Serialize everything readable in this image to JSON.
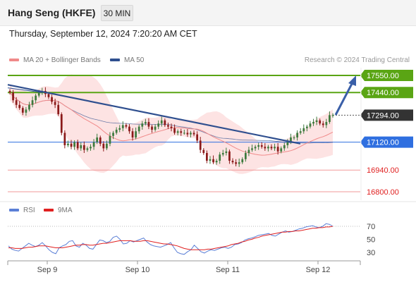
{
  "header": {
    "title": "Hang Seng (HKFE)",
    "timeframe": "30 MIN",
    "datetime": "Thursday, September 12, 2024 7:20:20 AM CET"
  },
  "legend": {
    "ma20": {
      "label": "MA 20 + Bollinger Bands",
      "color": "#f08a8a"
    },
    "ma50": {
      "label": "MA 50",
      "color": "#2f4f8f"
    },
    "copyright": "Research © 2024 Trading Central"
  },
  "rsi_legend": {
    "rsi": {
      "label": "RSI",
      "color": "#5b7fd6"
    },
    "ma9": {
      "label": "9MA",
      "color": "#e02020"
    }
  },
  "colors": {
    "up": "#3d7a3d",
    "down": "#8b1a1a",
    "resistance": "#5aa514",
    "pivot": "#2f6fe0",
    "support": "#f29a9a",
    "current": "#333333",
    "arrow": "#3a5fa8"
  },
  "chart_data": [
    {
      "type": "candlestick",
      "ylim": [
        16760,
        17620
      ],
      "x_ticks": [
        "Sep 9",
        "Sep 10",
        "Sep 11",
        "Sep 12"
      ],
      "levels": [
        {
          "value": 17550,
          "label": "17550.00",
          "kind": "resistance"
        },
        {
          "value": 17440,
          "label": "17440.00",
          "kind": "resistance"
        },
        {
          "value": 17294,
          "label": "17294.00",
          "kind": "current"
        },
        {
          "value": 17120,
          "label": "17120.00",
          "kind": "pivot"
        },
        {
          "value": 16940,
          "label": "16940.00",
          "kind": "support"
        },
        {
          "value": 16800,
          "label": "16800.00",
          "kind": "support"
        }
      ],
      "close": [
        17440,
        17390,
        17360,
        17340,
        17310,
        17330,
        17360,
        17390,
        17420,
        17440,
        17450,
        17430,
        17410,
        17380,
        17360,
        17300,
        17180,
        17100,
        17110,
        17090,
        17120,
        17080,
        17100,
        17070,
        17080,
        17090,
        17120,
        17150,
        17110,
        17080,
        17110,
        17160,
        17180,
        17200,
        17210,
        17230,
        17220,
        17190,
        17150,
        17190,
        17220,
        17240,
        17250,
        17220,
        17200,
        17220,
        17240,
        17260,
        17230,
        17220,
        17210,
        17180,
        17190,
        17180,
        17180,
        17170,
        17180,
        17170,
        17130,
        17070,
        17050,
        17000,
        17010,
        16990,
        17000,
        17040,
        17050,
        17060,
        17000,
        16990,
        16980,
        16990,
        17010,
        17050,
        17070,
        17080,
        17090,
        17100,
        17090,
        17080,
        17090,
        17080,
        17090,
        17060,
        17080,
        17100,
        17120,
        17150,
        17150,
        17180,
        17190,
        17210,
        17220,
        17240,
        17250,
        17260,
        17240,
        17230,
        17250,
        17294,
        17294
      ]
    },
    {
      "type": "line",
      "ylim": [
        15,
        85
      ],
      "y_ticks": [
        30,
        50,
        70
      ],
      "series": [
        {
          "name": "RSI",
          "values": [
            40,
            35,
            33,
            32,
            36,
            40,
            44,
            41,
            39,
            41,
            45,
            40,
            34,
            30,
            28,
            37,
            40,
            42,
            47,
            48,
            40,
            38,
            44,
            41,
            36,
            35,
            42,
            49,
            48,
            45,
            47,
            53,
            55,
            50,
            43,
            44,
            48,
            46,
            48,
            50,
            52,
            46,
            42,
            40,
            39,
            38,
            40,
            42,
            45,
            37,
            30,
            28,
            27,
            31,
            34,
            41,
            36,
            31,
            29,
            32,
            34,
            33,
            35,
            37,
            38,
            36,
            38,
            42,
            43,
            45,
            49,
            51,
            52,
            54,
            56,
            57,
            58,
            59,
            56,
            55,
            58,
            61,
            63,
            61,
            62,
            64,
            66,
            67,
            69,
            70,
            71,
            69,
            68,
            70,
            74,
            73,
            70
          ]
        },
        {
          "name": "9MA",
          "values": [
            37,
            37,
            36,
            36,
            36,
            37,
            38,
            38,
            39,
            40,
            40,
            40,
            39,
            38,
            37,
            37,
            37,
            38,
            39,
            40,
            41,
            41,
            42,
            42,
            41,
            41,
            42,
            43,
            44,
            44,
            45,
            46,
            47,
            48,
            48,
            48,
            48,
            47,
            47,
            47,
            48,
            48,
            47,
            46,
            45,
            44,
            43,
            43,
            42,
            41,
            40,
            38,
            36,
            35,
            34,
            34,
            34,
            34,
            34,
            35,
            35,
            36,
            37,
            38,
            39,
            40,
            42,
            43,
            44,
            46,
            47,
            49,
            50,
            52,
            53,
            55,
            56,
            57,
            58,
            59,
            60,
            61,
            61,
            62,
            62,
            63,
            63,
            64,
            65,
            66,
            67,
            67,
            68,
            68,
            69,
            69,
            70
          ]
        }
      ]
    }
  ]
}
